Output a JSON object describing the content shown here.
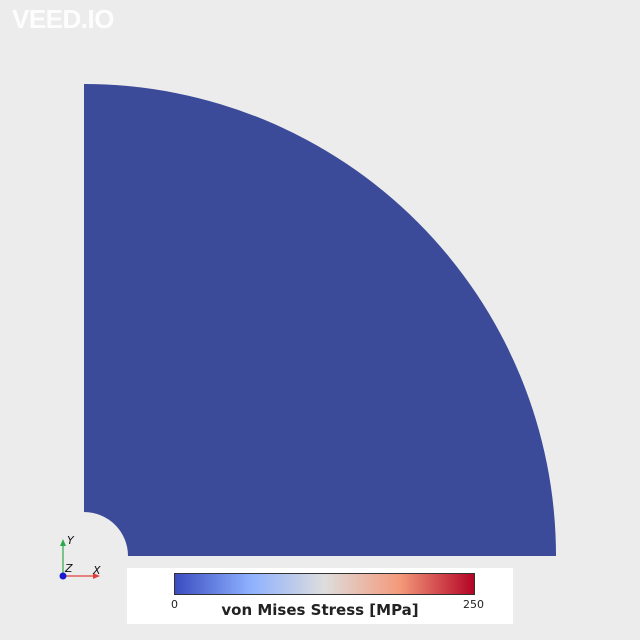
{
  "watermark": "VEED.IO",
  "legend": {
    "title": "von Mises Stress [MPa]",
    "min_label": "0",
    "max_label": "250",
    "colors": [
      "#3b4cc0",
      "#8db0fe",
      "#dddddd",
      "#f49a7b",
      "#b40426"
    ]
  },
  "axes": {
    "x_label": "X",
    "y_label": "Y",
    "z_label": "Z",
    "x_color": "#e0413a",
    "y_color": "#2ea84a",
    "z_color": "#1a1ad0"
  },
  "mesh": {
    "fill_color": "#3b4a99"
  }
}
